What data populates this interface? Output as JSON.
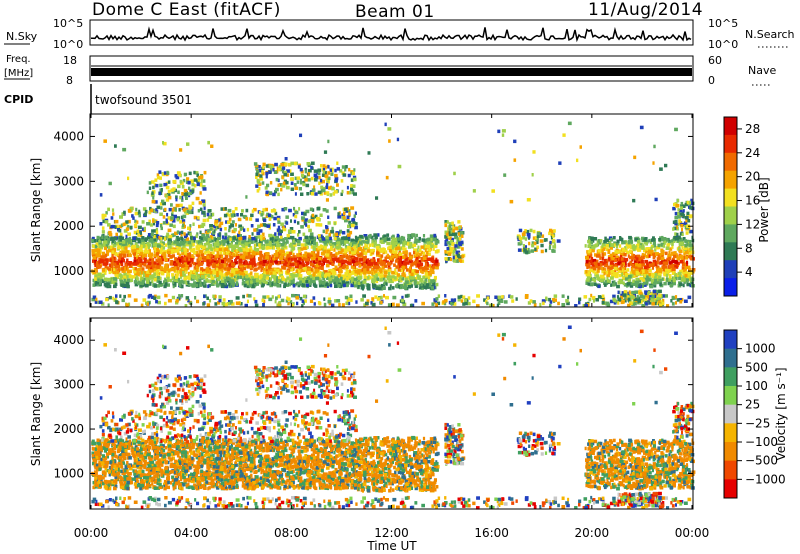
{
  "header": {
    "station": "Dome C East (fitACF)",
    "beam": "Beam 01",
    "date": "11/Aug/2014"
  },
  "aux_panels": {
    "nsky": {
      "label": "N.Sky",
      "top_tick": "10^5",
      "bottom_tick": "10^0",
      "right_label": "N.Search",
      "right_top_tick": "10^5",
      "right_bottom_tick": "10^0"
    },
    "freq": {
      "label_line1": "Freq.",
      "label_line2": "[MHz]",
      "top_tick": "18",
      "bottom_tick": "8",
      "right_label": "Nave",
      "right_top_tick": "60",
      "right_bottom_tick": "0"
    },
    "cpid": {
      "label": "CPID",
      "value": "twofsound 3501"
    }
  },
  "colors": {
    "power": [
      "#0a1fe8",
      "#1f3fb8",
      "#2f7a55",
      "#5fa85f",
      "#9fd04a",
      "#f2e020",
      "#f5a300",
      "#f06a00",
      "#e82a00",
      "#d00000"
    ],
    "velocity": [
      "#e60000",
      "#f04800",
      "#f08a00",
      "#f5b400",
      "#c8c8c8",
      "#7fd24f",
      "#3f9f60",
      "#2f6f8f",
      "#2040c0"
    ]
  },
  "chart_data": [
    {
      "type": "heatmap",
      "name": "power",
      "ylabel": "Slant Range [km]",
      "xlabel": "Time UT",
      "ylim": [
        200,
        4500
      ],
      "xlim": [
        0,
        24
      ],
      "y_ticks": [
        "4000",
        "3000",
        "2000",
        "1000"
      ],
      "x_ticks": [
        "00:00",
        "04:00",
        "08:00",
        "12:00",
        "16:00",
        "20:00",
        "00:00"
      ],
      "colorbar_label": "Power [dB]",
      "colorbar_ticks": [
        "28",
        "24",
        "20",
        "16",
        "12",
        "8",
        "4"
      ],
      "colorbar_range": [
        0,
        30
      ]
    },
    {
      "type": "heatmap",
      "name": "velocity",
      "ylabel": "Slant Range [km]",
      "xlabel": "Time UT",
      "ylim": [
        200,
        4500
      ],
      "xlim": [
        0,
        24
      ],
      "y_ticks": [
        "4000",
        "3000",
        "2000",
        "1000"
      ],
      "x_ticks": [
        "00:00",
        "04:00",
        "08:00",
        "12:00",
        "16:00",
        "20:00",
        "00:00"
      ],
      "colorbar_label": "Velocity [m s⁻¹]",
      "colorbar_ticks": [
        "1000",
        "500",
        "100",
        "25",
        "−25",
        "−100",
        "−500",
        "−1000"
      ]
    }
  ],
  "x_axis_title": "Time UT"
}
